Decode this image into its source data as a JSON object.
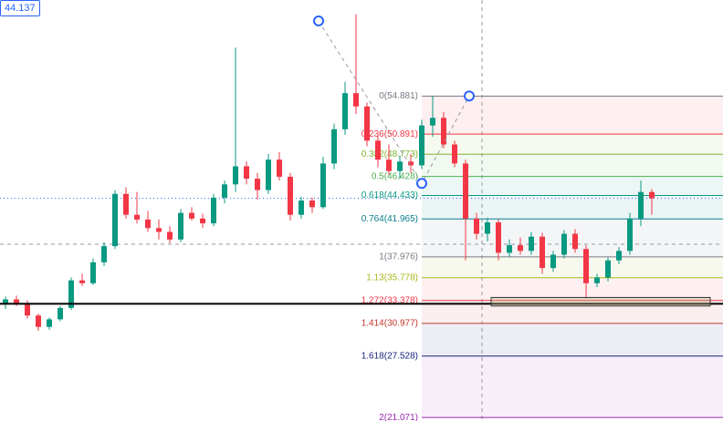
{
  "chart_data": {
    "type": "candlestick",
    "last_price": 44.137,
    "up_color": "#089981",
    "down_color": "#f23645",
    "ylim": [
      20.7,
      65.0
    ],
    "open": [
      33.0,
      33.5,
      33.1,
      31.8,
      30.6,
      31.4,
      32.6,
      35.5,
      35.2,
      37.4,
      39.1,
      44.6,
      42.4,
      41.9,
      41.0,
      40.6,
      39.8,
      42.6,
      42.0,
      41.5,
      44.2,
      45.6,
      47.5,
      46.2,
      45.0,
      48.2,
      46.4,
      42.4,
      43.9,
      43.2,
      47.8,
      51.4,
      55.2,
      53.8,
      50.2,
      48.2,
      47.0,
      48.0,
      47.6,
      51.8,
      52.6,
      49.8,
      47.8,
      42.0,
      40.4,
      41.6,
      38.4,
      39.2,
      38.6,
      40.1,
      36.8,
      38.2,
      40.4,
      38.8,
      35.2,
      35.8,
      37.6,
      38.6,
      42.0,
      44.8
    ],
    "high": [
      33.8,
      33.9,
      33.4,
      32.0,
      31.6,
      32.8,
      35.8,
      36.2,
      37.8,
      39.5,
      45.0,
      45.3,
      44.8,
      42.8,
      41.9,
      41.2,
      43.0,
      43.2,
      42.5,
      44.6,
      46.0,
      60.0,
      48.0,
      46.8,
      48.8,
      49.0,
      46.8,
      44.3,
      44.2,
      48.5,
      52.0,
      56.4,
      63.5,
      54.2,
      50.8,
      49.8,
      48.6,
      48.8,
      52.4,
      54.9,
      53.2,
      50.2,
      48.2,
      42.6,
      42.1,
      41.9,
      39.8,
      40.0,
      40.6,
      40.5,
      38.6,
      40.8,
      40.9,
      39.2,
      36.2,
      37.9,
      39.0,
      42.6,
      46.0,
      45.1
    ],
    "low": [
      32.5,
      32.8,
      31.5,
      30.2,
      30.3,
      31.2,
      32.4,
      34.9,
      35.0,
      37.0,
      38.8,
      42.0,
      41.5,
      40.6,
      39.8,
      39.4,
      39.5,
      41.8,
      41.0,
      41.2,
      43.6,
      44.8,
      45.6,
      44.0,
      44.6,
      46.0,
      41.8,
      42.0,
      42.6,
      43.0,
      47.2,
      50.8,
      53.0,
      49.6,
      47.4,
      46.6,
      46.2,
      46.8,
      47.2,
      50.6,
      49.4,
      47.4,
      37.6,
      39.8,
      39.6,
      37.6,
      38.0,
      38.2,
      38.2,
      36.2,
      36.4,
      37.8,
      38.4,
      33.6,
      34.8,
      35.4,
      37.2,
      38.2,
      41.2,
      42.4
    ],
    "close": [
      33.5,
      33.1,
      31.8,
      30.6,
      31.4,
      32.6,
      35.5,
      35.2,
      37.4,
      39.1,
      44.6,
      42.4,
      41.9,
      41.0,
      40.6,
      39.8,
      42.6,
      42.0,
      41.5,
      44.2,
      45.6,
      47.5,
      46.2,
      45.0,
      48.2,
      46.4,
      42.4,
      43.9,
      43.2,
      47.8,
      51.4,
      55.2,
      53.8,
      50.2,
      48.2,
      47.0,
      48.0,
      47.6,
      51.8,
      52.6,
      49.8,
      47.8,
      42.0,
      40.4,
      41.6,
      38.4,
      39.2,
      38.6,
      40.1,
      36.8,
      38.2,
      40.4,
      38.8,
      35.2,
      35.8,
      37.6,
      38.6,
      42.0,
      44.8,
      44.137
    ],
    "fib_levels": [
      {
        "label": "0(54.881)",
        "value": 54.881,
        "color": "#787b86"
      },
      {
        "label": "0.236(50.891)",
        "value": 50.891,
        "color": "#f23645"
      },
      {
        "label": "0.382(48.773)",
        "value": 48.773,
        "color": "#81b530"
      },
      {
        "label": "0.5(46.428)",
        "value": 46.428,
        "color": "#4caf50"
      },
      {
        "label": "0.618(44.433)",
        "value": 44.433,
        "color": "#089981"
      },
      {
        "label": "0.764(41.965)",
        "value": 41.965,
        "color": "#0a7e8c"
      },
      {
        "label": "1(37.976)",
        "value": 37.976,
        "color": "#787b86"
      },
      {
        "label": "1.13(35.778)",
        "value": 35.778,
        "color": "#a8b820"
      },
      {
        "label": "1.272(33.378)",
        "value": 33.378,
        "color": "#f23645"
      },
      {
        "label": "1.414(30.977)",
        "value": 30.977,
        "color": "#c0392b"
      },
      {
        "label": "1.618(27.528)",
        "value": 27.528,
        "color": "#1a237e"
      },
      {
        "label": "2(21.071)",
        "value": 21.071,
        "color": "#9c27b0"
      }
    ],
    "fib_anchors": [
      62.8,
      45.7,
      54.9
    ],
    "horizontal_line": 33.03,
    "zone": [
      32.8,
      33.7
    ],
    "crosshair_price": 39.3
  }
}
